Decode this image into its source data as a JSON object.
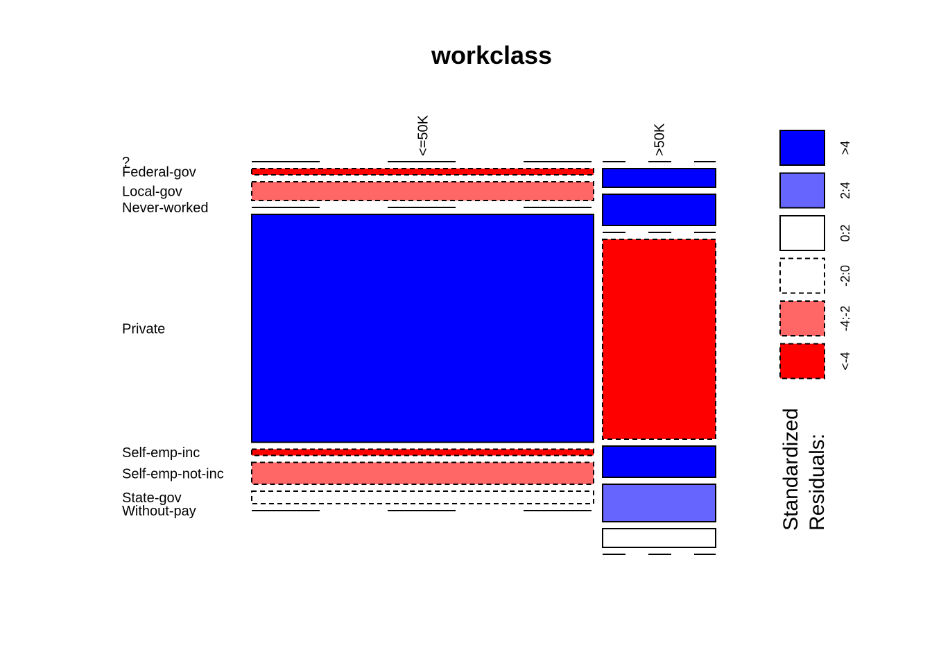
{
  "chart_data": {
    "type": "mosaic",
    "title": "workclass",
    "columns": [
      "<=50K",
      ">50K"
    ],
    "rows": [
      "?",
      "Federal-gov",
      "Local-gov",
      "Never-worked",
      "Private",
      "Self-emp-inc",
      "Self-emp-not-inc",
      "State-gov",
      "Without-pay"
    ],
    "column_proportions": [
      0.76,
      0.24
    ],
    "conditional_proportions": {
      "<=50K": [
        0.0,
        0.02,
        0.06,
        0.0,
        0.73,
        0.02,
        0.07,
        0.04,
        0.0
      ],
      ">50K": [
        0.0,
        0.06,
        0.1,
        0.0,
        0.64,
        0.1,
        0.12,
        0.06,
        0.0
      ]
    },
    "residual_class": {
      "<=50K": [
        "<-4",
        "<-4",
        "-4:-2",
        "0:2",
        ">4",
        "<-4",
        "-4:-2",
        "-2:0",
        "-2:0"
      ],
      ">50K": [
        "0:2",
        ">4",
        ">4",
        "-2:0",
        "<-4",
        ">4",
        "2:4",
        "0:2",
        "-2:0"
      ]
    },
    "legend": {
      "title": "Standardized\nResiduals:",
      "entries": [
        {
          "label": ">4",
          "color": "#0000ff",
          "dashed": false
        },
        {
          "label": "2:4",
          "color": "#6666ff",
          "dashed": false
        },
        {
          "label": "0:2",
          "color": "#ffffff",
          "dashed": false
        },
        {
          "label": "-2:0",
          "color": "#ffffff",
          "dashed": true
        },
        {
          "label": "-4:-2",
          "color": "#ff6666",
          "dashed": true
        },
        {
          "label": "<-4",
          "color": "#ff0000",
          "dashed": true
        }
      ]
    }
  }
}
